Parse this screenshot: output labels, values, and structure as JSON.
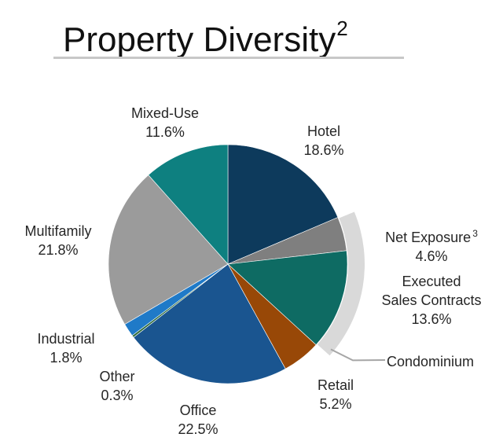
{
  "title": {
    "text": "Property Diversity",
    "superscript": "2"
  },
  "chart_data": {
    "type": "pie",
    "title": "Property Diversity",
    "slices": [
      {
        "key": "hotel",
        "label": "Hotel",
        "value": 18.6,
        "value_text": "18.6%",
        "color": "#0d3a5c"
      },
      {
        "key": "net",
        "label": "Net Exposure",
        "value": 4.6,
        "value_text": "4.6%",
        "color": "#7f7f7f",
        "superscript": "3"
      },
      {
        "key": "executed",
        "label": "Executed Sales Contracts",
        "value": 13.6,
        "value_text": "13.6%",
        "color": "#0e6b63"
      },
      {
        "key": "retail",
        "label": "Retail",
        "value": 5.2,
        "value_text": "5.2%",
        "color": "#984807"
      },
      {
        "key": "office",
        "label": "Office",
        "value": 22.5,
        "value_text": "22.5%",
        "color": "#1a5590"
      },
      {
        "key": "other",
        "label": "Other",
        "value": 0.3,
        "value_text": "0.3%",
        "color": "#2e6b3a"
      },
      {
        "key": "industrial",
        "label": "Industrial",
        "value": 1.8,
        "value_text": "1.8%",
        "color": "#1f7ac8"
      },
      {
        "key": "multifamily",
        "label": "Multifamily",
        "value": 21.8,
        "value_text": "21.8%",
        "color": "#9b9b9b"
      },
      {
        "key": "mixed",
        "label": "Mixed-Use",
        "value": 11.6,
        "value_text": "11.6%",
        "color": "#0e8080"
      }
    ],
    "group": {
      "label": "Condominium",
      "members": [
        "net",
        "executed"
      ],
      "color": "#d9d9d9"
    },
    "label_lines": {
      "executed": [
        "Executed",
        "Sales Contracts"
      ]
    }
  }
}
